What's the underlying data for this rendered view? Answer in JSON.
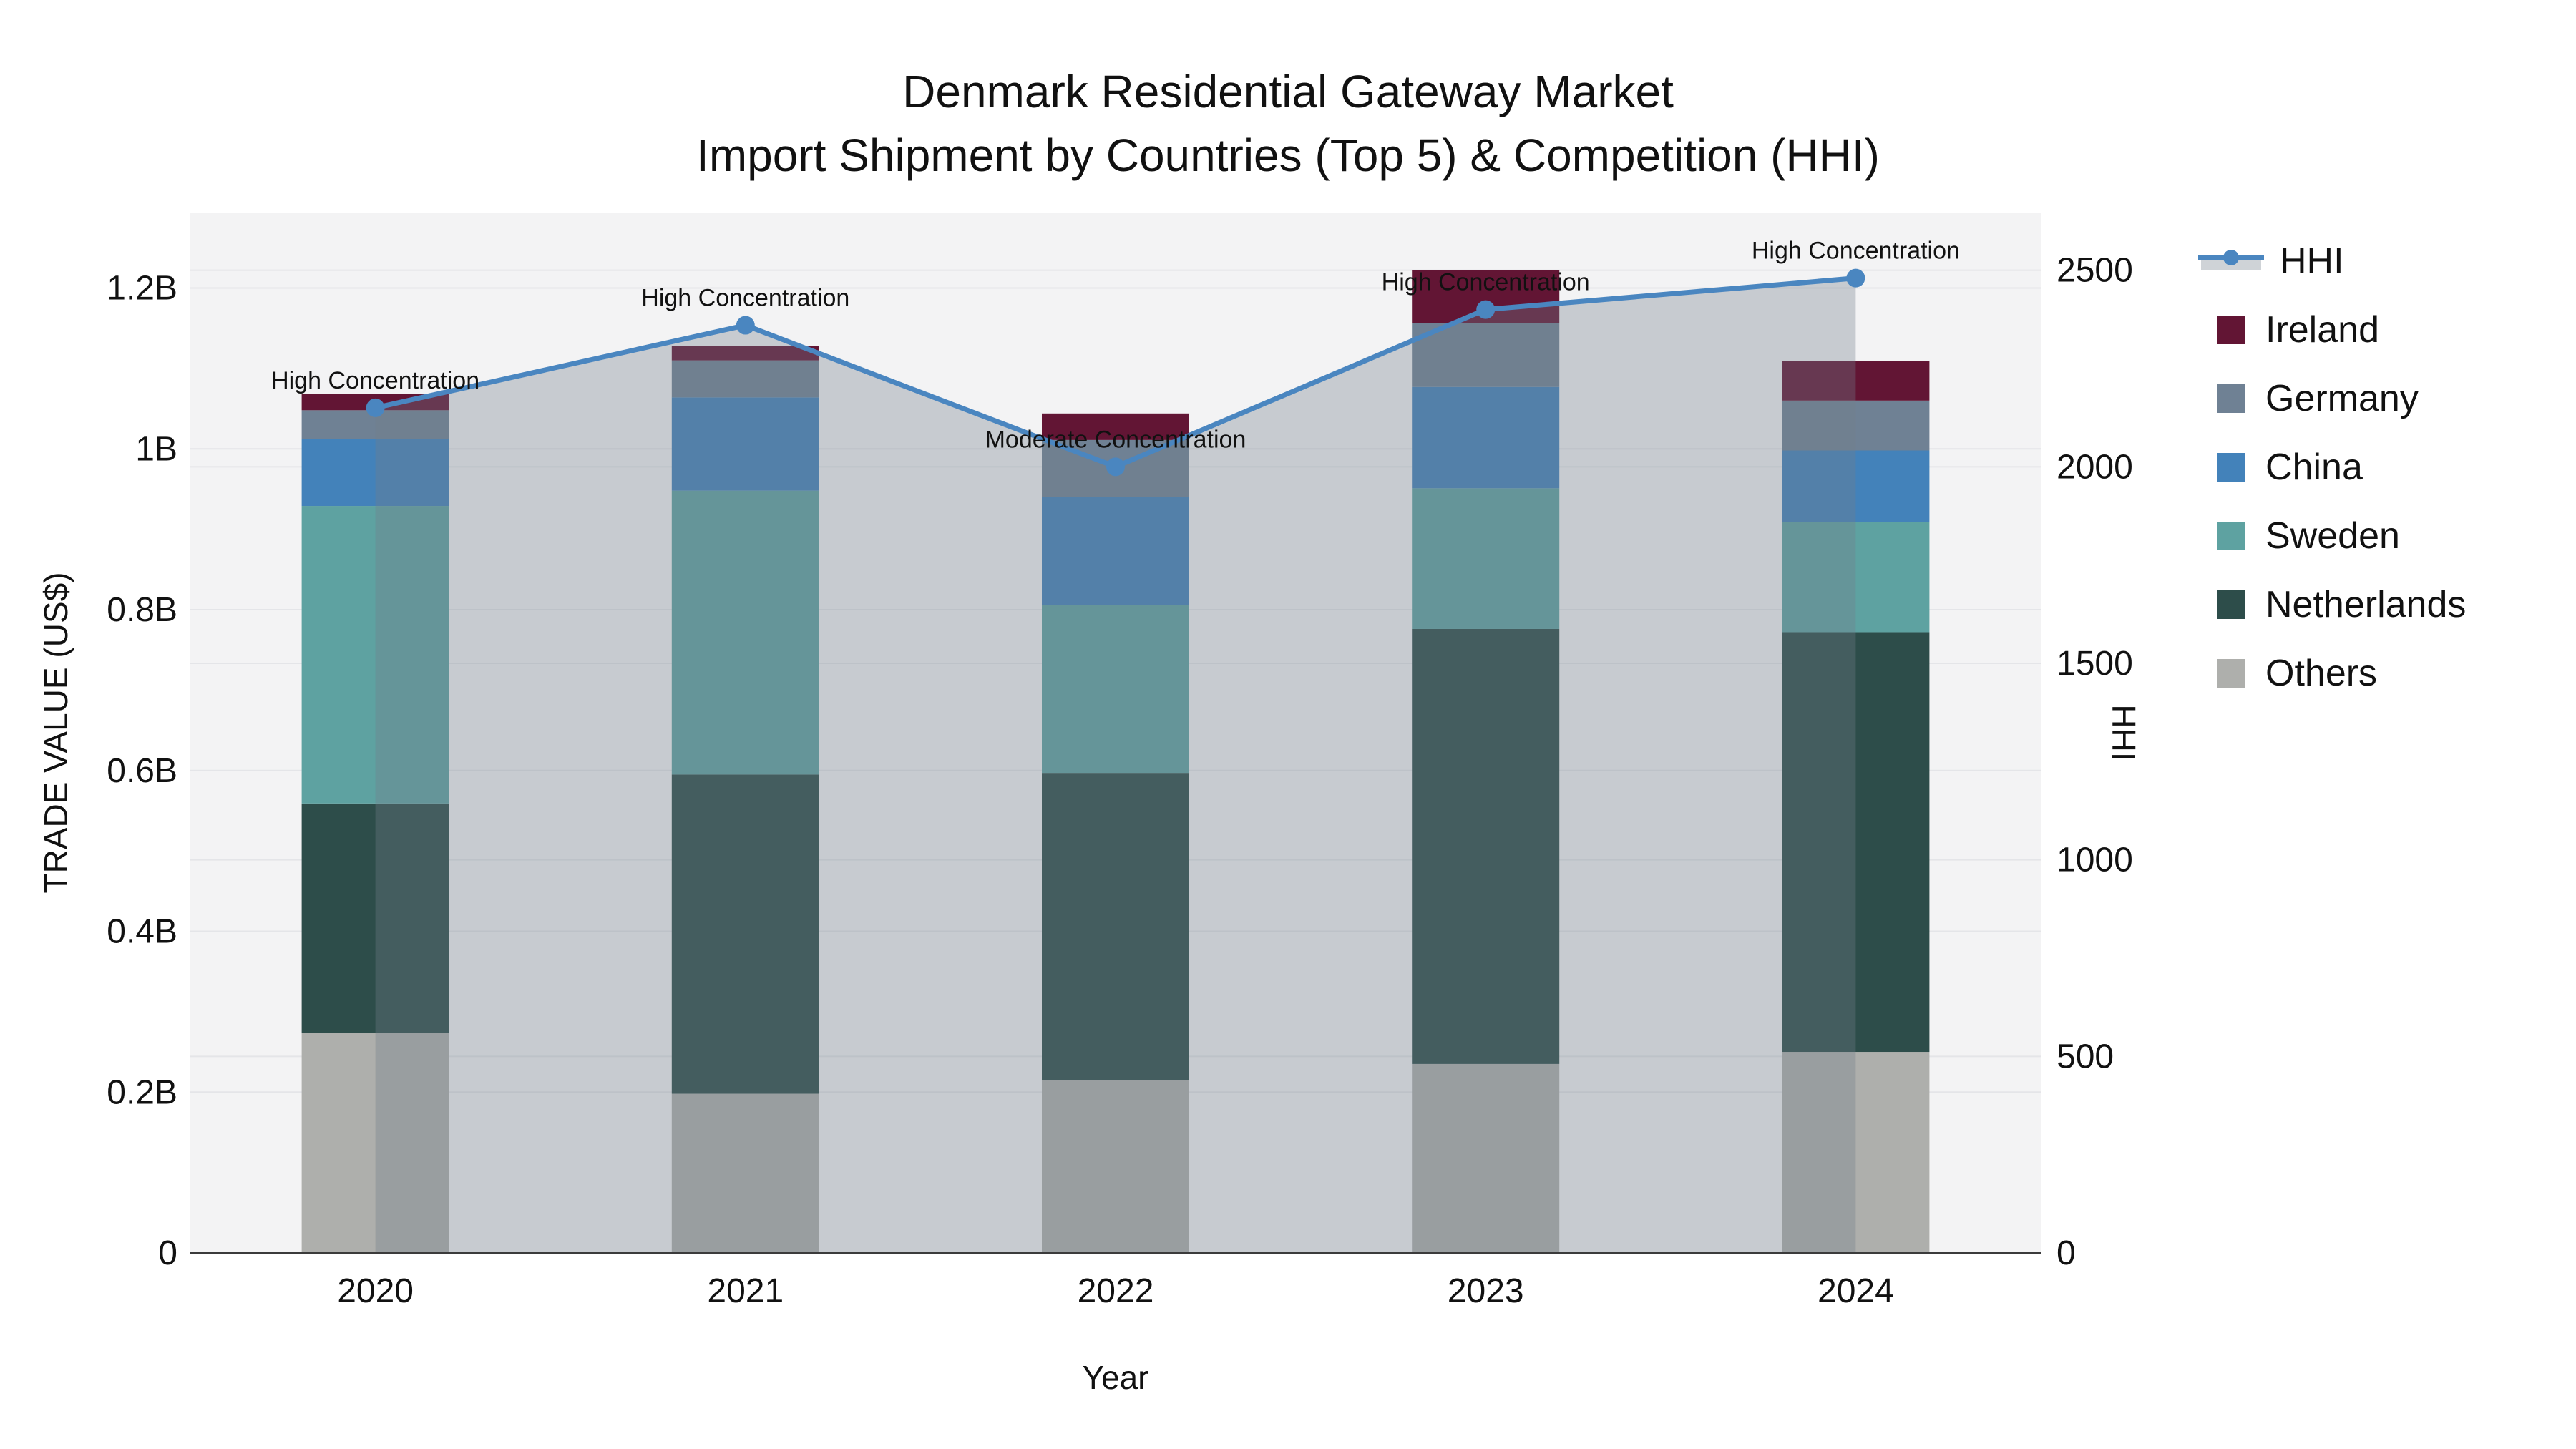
{
  "chart_data": {
    "type": "bar",
    "title": "Denmark Residential Gateway Market",
    "subtitle": "Import Shipment by Countries (Top 5) & Competition (HHI)",
    "xlabel": "Year",
    "ylabel_left": "TRADE VALUE (US$)",
    "ylabel_right": "HHI",
    "categories": [
      "2020",
      "2021",
      "2022",
      "2023",
      "2024"
    ],
    "value_unit": "billion US$",
    "stack_order": "bottom-to-top",
    "series": [
      {
        "name": "Others",
        "color": "#AEAFAC",
        "values": [
          0.274,
          0.198,
          0.215,
          0.235,
          0.25
        ]
      },
      {
        "name": "Netherlands",
        "color": "#2D4D4A",
        "values": [
          0.285,
          0.397,
          0.382,
          0.541,
          0.522
        ]
      },
      {
        "name": "Sweden",
        "color": "#5EA2A1",
        "values": [
          0.37,
          0.353,
          0.209,
          0.175,
          0.137
        ]
      },
      {
        "name": "China",
        "color": "#4382BA",
        "values": [
          0.083,
          0.116,
          0.134,
          0.126,
          0.089
        ]
      },
      {
        "name": "Germany",
        "color": "#6F8194",
        "values": [
          0.036,
          0.046,
          0.071,
          0.079,
          0.062
        ]
      },
      {
        "name": "Ireland",
        "color": "#621534",
        "values": [
          0.02,
          0.018,
          0.033,
          0.066,
          0.049
        ]
      }
    ],
    "hhi": {
      "name": "HHI",
      "color": "#4A86C0",
      "area_fill": "rgba(114,126,138,0.34)",
      "values": [
        2150,
        2360,
        2000,
        2400,
        2480
      ]
    },
    "annotations": [
      {
        "category": "2020",
        "text": "High Concentration"
      },
      {
        "category": "2021",
        "text": "High Concentration"
      },
      {
        "category": "2022",
        "text": "Moderate Concentration"
      },
      {
        "category": "2023",
        "text": "High Concentration"
      },
      {
        "category": "2024",
        "text": "High Concentration"
      }
    ],
    "y_left_axis": {
      "tick_labels": [
        "0",
        "0.2B",
        "0.4B",
        "0.6B",
        "0.8B",
        "1B",
        "1.2B"
      ],
      "tick_values": [
        0,
        0.2,
        0.4,
        0.6,
        0.8,
        1.0,
        1.2
      ],
      "range": [
        0,
        1.293
      ]
    },
    "y_right_axis": {
      "tick_labels": [
        "0",
        "500",
        "1000",
        "1500",
        "2000",
        "2500"
      ],
      "tick_values": [
        0,
        500,
        1000,
        1500,
        2000,
        2500
      ],
      "range": [
        0,
        2645
      ]
    },
    "legend_position": "right",
    "grid": true
  },
  "legend": {
    "items": [
      {
        "label": "HHI",
        "type": "line",
        "color": "#4A86C0",
        "patch": "#CFD3D7"
      },
      {
        "label": "Ireland",
        "type": "swatch",
        "color": "#621534"
      },
      {
        "label": "Germany",
        "type": "swatch",
        "color": "#6F8194"
      },
      {
        "label": "China",
        "type": "swatch",
        "color": "#4382BA"
      },
      {
        "label": "Sweden",
        "type": "swatch",
        "color": "#5EA2A1"
      },
      {
        "label": "Netherlands",
        "type": "swatch",
        "color": "#2D4D4A"
      },
      {
        "label": "Others",
        "type": "swatch",
        "color": "#AEAFAC"
      }
    ]
  },
  "colors": {
    "plot_bg": "#F3F3F4",
    "grid": "#E4E5E8",
    "axis_line": "#3B3B3B",
    "text": "#000000"
  }
}
